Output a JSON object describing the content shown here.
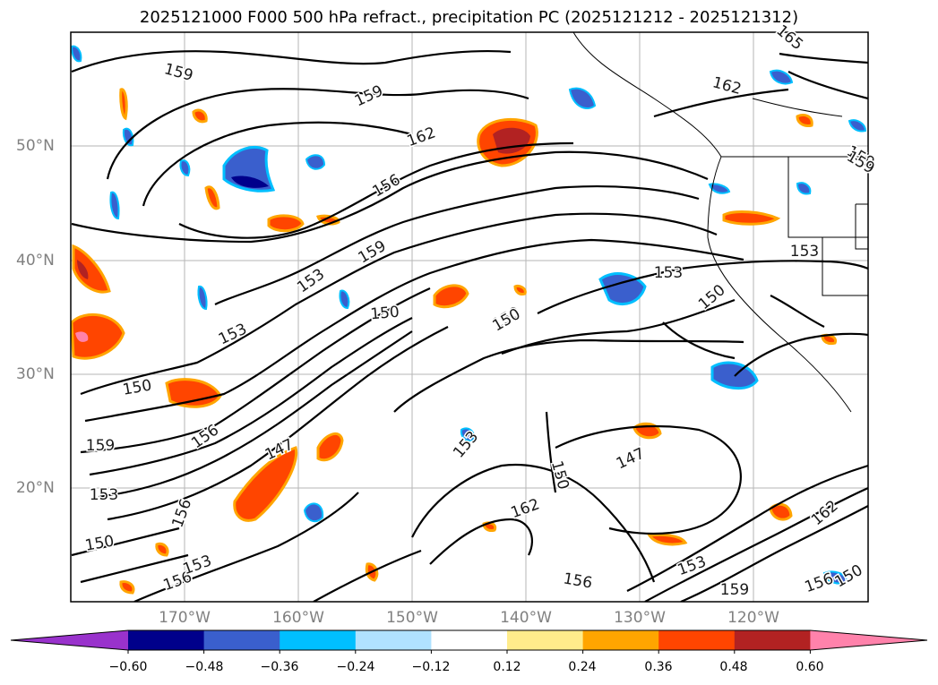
{
  "title": "2025121000 F000 500 hPa refract., precipitation PC (2025121212 - 2025121312)",
  "lat_labels": [
    "50°N",
    "40°N",
    "30°N",
    "20°N"
  ],
  "lon_labels": [
    "170°W",
    "160°W",
    "150°W",
    "140°W",
    "130°W",
    "120°W"
  ],
  "contour_labels": [
    "159",
    "159",
    "162",
    "156",
    "162",
    "159",
    "153",
    "150",
    "153",
    "150",
    "150",
    "150",
    "153",
    "147",
    "156",
    "159",
    "153",
    "153",
    "156",
    "150",
    "156",
    "147",
    "153",
    "150",
    "162",
    "162",
    "153",
    "159",
    "165",
    "159",
    "156",
    "156",
    "153",
    "159",
    "150",
    "150"
  ],
  "colorbar": {
    "ticks": [
      "−0.60",
      "−0.48",
      "−0.36",
      "−0.24",
      "−0.12",
      "0.12",
      "0.24",
      "0.36",
      "0.48",
      "0.60"
    ],
    "colors": [
      "#9932cc",
      "#00008b",
      "#3a5fcd",
      "#00bfff",
      "#b0e2ff",
      "#ffffff",
      "#ffec8b",
      "#ffa500",
      "#ff4500",
      "#b22222",
      "#ff82ab"
    ]
  }
}
